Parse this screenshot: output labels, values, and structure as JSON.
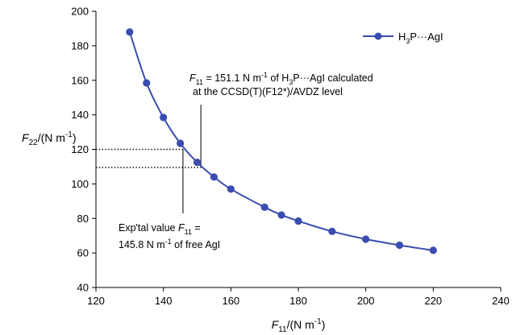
{
  "chart_data": {
    "type": "line",
    "xlim": [
      120,
      240
    ],
    "ylim": [
      40,
      200
    ],
    "x_ticks": [
      120,
      140,
      160,
      180,
      200,
      220,
      240
    ],
    "y_ticks": [
      40,
      60,
      80,
      100,
      120,
      140,
      160,
      180,
      200
    ],
    "grid": false,
    "legend_position": "top-right",
    "xlabel": {
      "main": "F",
      "sub": "11",
      "rest": "/(N m",
      "sup": "-1",
      "end": ")"
    },
    "ylabel": {
      "main": "F",
      "sub": "22",
      "rest": "/(N m",
      "sup": "-1",
      "end": ")"
    },
    "series": [
      {
        "name": "H3P···AgI",
        "legend_label": {
          "a": "H",
          "sub": "3",
          "b": "P···AgI"
        },
        "color": "#3a4cb0",
        "x": [
          130,
          135,
          140,
          145,
          150,
          155,
          160,
          170,
          175,
          180,
          190,
          200,
          210,
          220
        ],
        "y": [
          188,
          158.5,
          138.5,
          123.5,
          112.5,
          104,
          97,
          86.5,
          82,
          78.5,
          72.5,
          68,
          64.5,
          61.5
        ]
      }
    ],
    "reference_lines": {
      "calc_x": 151.1,
      "calc_y": 109.5,
      "expt_x": 145.8,
      "expt_y": 120
    },
    "annotations": {
      "calc_line1": {
        "a": "F",
        "sub": "11",
        "b": " = 151.1 N m",
        "sup": "-1",
        "c": " of H",
        "sub2": "3",
        "d": "P···AgI calculated"
      },
      "calc_line2": "at the CCSD(T)(F12*)/AVDZ level",
      "expt_line1": {
        "a": "Exp'tal value ",
        "b": "F",
        "sub": "11",
        "c": " ="
      },
      "expt_line2": {
        "a": "145.8 N m",
        "sup": "-1",
        "b": " of free AgI"
      }
    }
  }
}
